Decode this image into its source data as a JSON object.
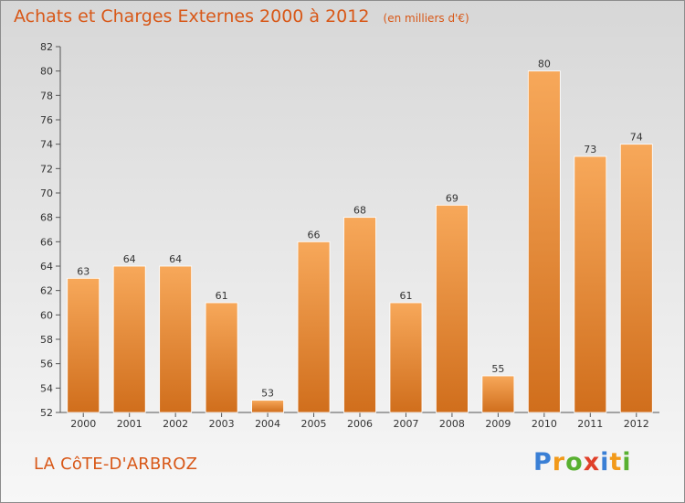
{
  "title": "Achats et Charges Externes 2000 à 2012",
  "unit": "(en milliers d'€)",
  "commune": "LA CôTE-D'ARBROZ",
  "logo": {
    "text": "Proxiti",
    "letter_colors": [
      "#3a7fd5",
      "#f29a1a",
      "#58b030",
      "#e0402a",
      "#3a7fd5",
      "#f29a1a",
      "#58b030"
    ]
  },
  "colors": {
    "bar_light": "#f7a85a",
    "bar_dark": "#d06e1c",
    "accent": "#d85818"
  },
  "chart_data": {
    "type": "bar",
    "title": "Achats et Charges Externes 2000 à 2012",
    "subtitle": "(en milliers d'€)",
    "categories": [
      "2000",
      "2001",
      "2002",
      "2003",
      "2004",
      "2005",
      "2006",
      "2007",
      "2008",
      "2009",
      "2010",
      "2011",
      "2012"
    ],
    "values": [
      63,
      64,
      64,
      61,
      53,
      66,
      68,
      61,
      69,
      55,
      80,
      73,
      74
    ],
    "ylim": [
      52,
      82
    ],
    "yticks": [
      52,
      54,
      56,
      58,
      60,
      62,
      64,
      66,
      68,
      70,
      72,
      74,
      76,
      78,
      80,
      82
    ],
    "grid": false,
    "data_labels": true
  }
}
